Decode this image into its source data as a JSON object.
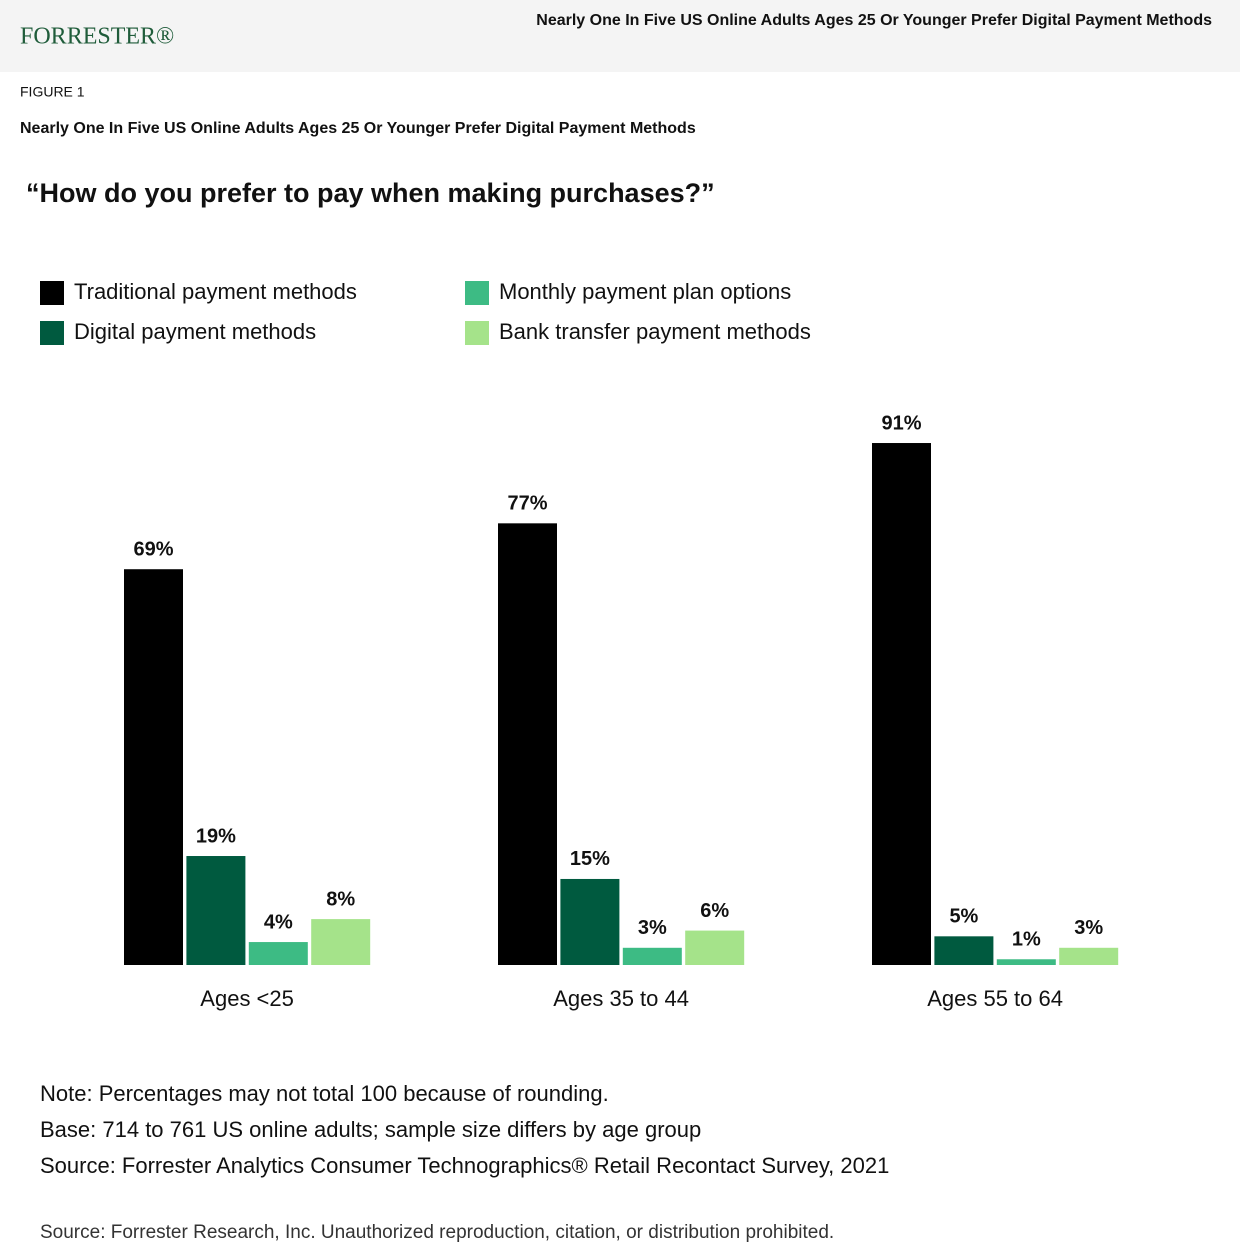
{
  "header": {
    "logo": "FORRESTER®",
    "title": "Nearly One In Five US Online Adults Ages 25 Or Younger Prefer Digital Payment Methods"
  },
  "figure": {
    "label": "FIGURE 1",
    "title": "Nearly One In Five US Online Adults Ages 25 Or Younger Prefer Digital Payment Methods"
  },
  "chart_data": {
    "type": "bar",
    "title": "“How do you prefer to pay when making purchases?”",
    "categories": [
      "Ages <25",
      "Ages 35 to 44",
      "Ages 55 to 64"
    ],
    "series": [
      {
        "name": "Traditional payment methods",
        "color": "#000000",
        "values": [
          69,
          77,
          91
        ],
        "value_labels": [
          "69%",
          "77%",
          "91%"
        ]
      },
      {
        "name": "Digital payment methods",
        "color": "#005a3f",
        "values": [
          19,
          15,
          5
        ],
        "value_labels": [
          "19%",
          "15%",
          "5%"
        ]
      },
      {
        "name": "Monthly payment plan options",
        "color": "#3dbb84",
        "values": [
          4,
          3,
          1
        ],
        "value_labels": [
          "4%",
          "3%",
          "1%"
        ]
      },
      {
        "name": "Bank transfer payment methods",
        "color": "#a5e38a",
        "values": [
          8,
          6,
          3
        ],
        "value_labels": [
          "8%",
          "6%",
          "3%"
        ]
      }
    ]
  },
  "notes": [
    "Note: Percentages may not total 100 because of rounding.",
    "Base: 714 to 761 US online adults; sample size differs by age group",
    "Source: Forrester Analytics Consumer Technographics® Retail Recontact Survey, 2021"
  ],
  "footer": "Source: Forrester Research, Inc. Unauthorized reproduction, citation, or distribution prohibited."
}
